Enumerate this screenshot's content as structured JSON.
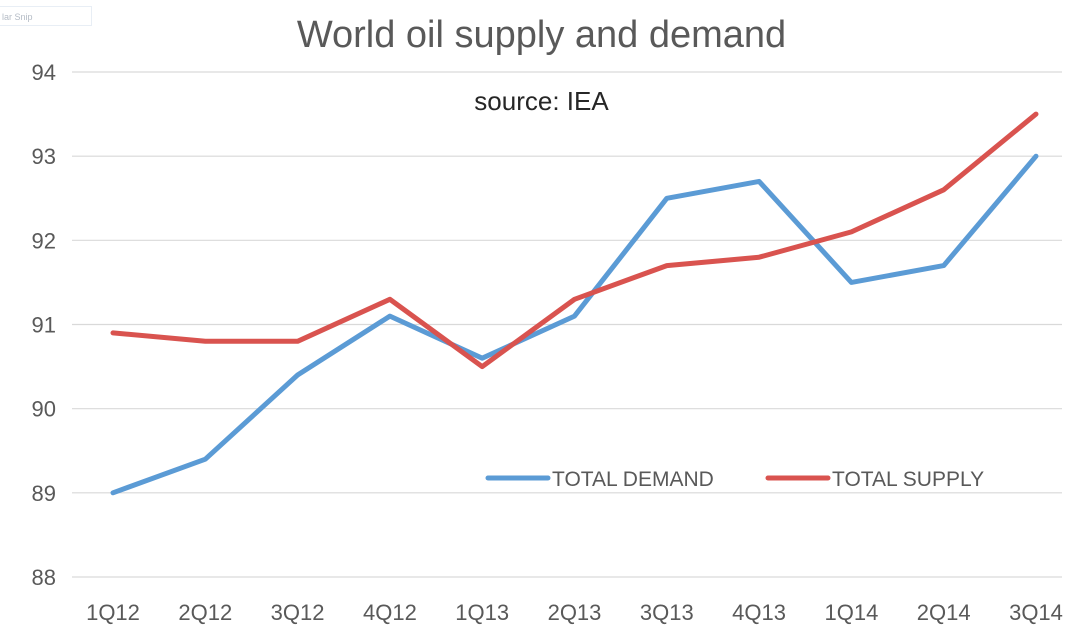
{
  "overlay": {
    "snip_label": "lar Snip"
  },
  "chart_data": {
    "type": "line",
    "title": "World oil supply and demand",
    "subtitle": "source: IEA",
    "categories": [
      "1Q12",
      "2Q12",
      "3Q12",
      "4Q12",
      "1Q13",
      "2Q13",
      "3Q13",
      "4Q13",
      "1Q14",
      "2Q14",
      "3Q14"
    ],
    "series": [
      {
        "name": "TOTAL DEMAND",
        "color": "#5b9bd5",
        "values": [
          89.0,
          89.4,
          90.4,
          91.1,
          90.6,
          91.1,
          92.5,
          92.7,
          91.5,
          91.7,
          93.0
        ]
      },
      {
        "name": "TOTAL SUPPLY",
        "color": "#d9534f",
        "values": [
          90.9,
          90.8,
          90.8,
          91.3,
          90.5,
          91.3,
          91.7,
          91.8,
          92.1,
          92.6,
          93.5
        ]
      }
    ],
    "ylim": [
      88,
      94
    ],
    "yticks": [
      "88",
      "89",
      "90",
      "91",
      "92",
      "93",
      "94"
    ],
    "xlabel": "",
    "ylabel": "",
    "grid": true,
    "legend": "bottom-right, inside plot"
  }
}
